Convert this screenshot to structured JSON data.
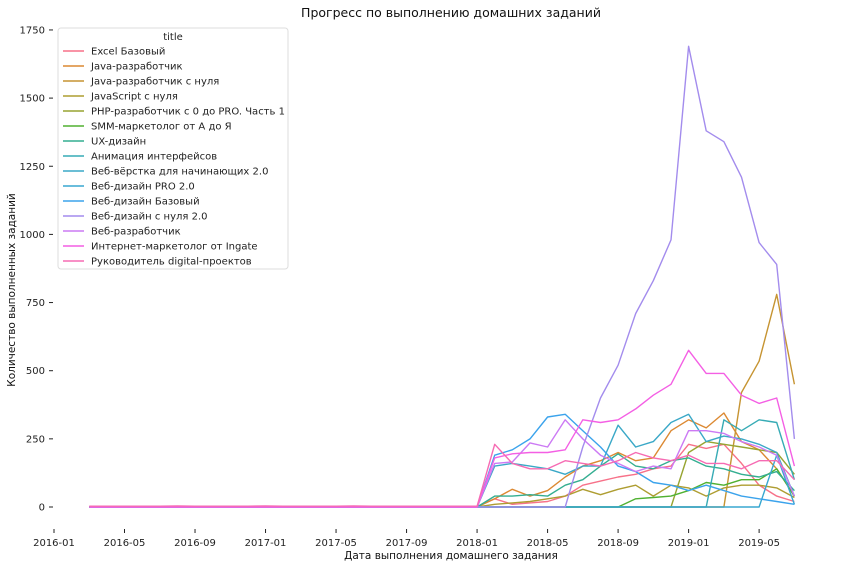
{
  "chart_data": {
    "type": "line",
    "title": "Прогресс по выполнению домашних заданий",
    "xlabel": "Дата выполнения домашнего задания",
    "ylabel": "Количество выполненных заданий",
    "legend_title": "title",
    "legend_position": "top-left",
    "grid": false,
    "xlim": [
      "2016-01",
      "2019-08"
    ],
    "ylim": [
      -60,
      1750
    ],
    "x_ticks": [
      "2016-01",
      "2016-05",
      "2016-09",
      "2017-01",
      "2017-05",
      "2017-09",
      "2018-01",
      "2018-05",
      "2018-09",
      "2019-01",
      "2019-05"
    ],
    "y_ticks": [
      0,
      250,
      500,
      750,
      1000,
      1250,
      1500,
      1750
    ],
    "x": [
      "2016-03",
      "2016-04",
      "2016-05",
      "2016-06",
      "2016-07",
      "2016-08",
      "2016-09",
      "2016-10",
      "2016-11",
      "2016-12",
      "2017-01",
      "2017-02",
      "2017-03",
      "2017-04",
      "2017-05",
      "2017-06",
      "2017-07",
      "2017-08",
      "2017-09",
      "2017-10",
      "2017-11",
      "2017-12",
      "2018-01",
      "2018-02",
      "2018-03",
      "2018-04",
      "2018-05",
      "2018-06",
      "2018-07",
      "2018-08",
      "2018-09",
      "2018-10",
      "2018-11",
      "2018-12",
      "2019-01",
      "2019-02",
      "2019-03",
      "2019-04",
      "2019-05",
      "2019-06",
      "2019-07"
    ],
    "series": [
      {
        "name": "Excel Базовый",
        "color": "#f77189",
        "values": [
          2,
          2,
          2,
          2,
          2,
          2,
          2,
          2,
          2,
          2,
          2,
          2,
          2,
          2,
          2,
          2,
          2,
          2,
          2,
          2,
          2,
          2,
          2,
          30,
          10,
          15,
          20,
          40,
          80,
          95,
          110,
          120,
          140,
          150,
          230,
          215,
          230,
          160,
          80,
          40,
          20
        ]
      },
      {
        "name": "Java-разработчик",
        "color": "#dc8932",
        "values": [
          0,
          0,
          0,
          0,
          0,
          0,
          0,
          0,
          0,
          0,
          0,
          0,
          0,
          0,
          0,
          0,
          0,
          0,
          0,
          0,
          0,
          0,
          0,
          30,
          65,
          40,
          60,
          110,
          150,
          170,
          200,
          170,
          180,
          280,
          320,
          290,
          345,
          240,
          210,
          140,
          40
        ]
      },
      {
        "name": "Java-разработчик с нуля",
        "color": "#c69432",
        "values": [
          0,
          0,
          0,
          0,
          0,
          0,
          0,
          0,
          0,
          0,
          0,
          0,
          0,
          0,
          0,
          0,
          0,
          0,
          0,
          0,
          0,
          0,
          0,
          0,
          0,
          0,
          0,
          0,
          0,
          0,
          0,
          0,
          0,
          0,
          0,
          0,
          0,
          420,
          535,
          780,
          450
        ]
      },
      {
        "name": "JavaScript с нуля",
        "color": "#ae9d31",
        "values": [
          0,
          0,
          0,
          0,
          0,
          0,
          0,
          0,
          0,
          0,
          0,
          0,
          0,
          0,
          0,
          0,
          0,
          0,
          0,
          0,
          0,
          0,
          0,
          10,
          15,
          20,
          30,
          40,
          65,
          45,
          65,
          80,
          40,
          80,
          70,
          40,
          70,
          80,
          80,
          70,
          35
        ]
      },
      {
        "name": "PHP-разработчик с 0 до PRO. Часть 1",
        "color": "#97a431",
        "values": [
          0,
          0,
          0,
          0,
          0,
          0,
          0,
          0,
          0,
          0,
          0,
          0,
          0,
          0,
          0,
          0,
          0,
          0,
          0,
          0,
          0,
          0,
          0,
          0,
          0,
          0,
          0,
          0,
          0,
          0,
          0,
          0,
          0,
          0,
          200,
          240,
          230,
          220,
          210,
          200,
          120
        ]
      },
      {
        "name": "SMM-маркетолог от А до Я",
        "color": "#50b131",
        "values": [
          0,
          0,
          0,
          0,
          0,
          0,
          0,
          0,
          0,
          0,
          0,
          0,
          0,
          0,
          0,
          0,
          0,
          0,
          0,
          0,
          0,
          0,
          0,
          0,
          0,
          0,
          0,
          0,
          0,
          0,
          0,
          30,
          35,
          40,
          60,
          90,
          80,
          100,
          100,
          140,
          40
        ]
      },
      {
        "name": "UX-дизайн",
        "color": "#34ae91",
        "values": [
          0,
          0,
          0,
          0,
          0,
          0,
          0,
          0,
          0,
          0,
          0,
          0,
          0,
          0,
          0,
          0,
          0,
          0,
          0,
          0,
          0,
          0,
          0,
          40,
          40,
          45,
          40,
          80,
          100,
          150,
          195,
          150,
          140,
          170,
          180,
          150,
          140,
          120,
          110,
          130,
          60
        ]
      },
      {
        "name": "Анимация интерфейсов",
        "color": "#37abb5",
        "values": [
          0,
          0,
          0,
          0,
          0,
          0,
          0,
          0,
          0,
          0,
          0,
          0,
          0,
          0,
          0,
          0,
          0,
          0,
          0,
          0,
          0,
          0,
          0,
          0,
          0,
          0,
          0,
          0,
          0,
          0,
          0,
          0,
          0,
          0,
          0,
          0,
          320,
          280,
          320,
          310,
          100
        ]
      },
      {
        "name": "Веб-вёрстка для начинающих 2.0",
        "color": "#3aa8c7",
        "values": [
          0,
          0,
          0,
          0,
          0,
          0,
          0,
          0,
          0,
          0,
          0,
          0,
          0,
          0,
          0,
          0,
          0,
          0,
          0,
          0,
          0,
          0,
          0,
          150,
          160,
          150,
          140,
          120,
          150,
          150,
          300,
          220,
          240,
          310,
          340,
          240,
          260,
          250,
          230,
          200,
          40
        ]
      },
      {
        "name": "Веб-дизайн PRO 2.0",
        "color": "#38a7d0",
        "values": [
          0,
          0,
          0,
          0,
          0,
          0,
          0,
          0,
          0,
          0,
          0,
          0,
          0,
          0,
          0,
          0,
          0,
          0,
          0,
          0,
          0,
          0,
          0,
          0,
          0,
          0,
          0,
          0,
          0,
          0,
          0,
          0,
          0,
          0,
          0,
          0,
          0,
          0,
          0,
          190,
          10
        ]
      },
      {
        "name": "Веб-дизайн Базовый",
        "color": "#3ba3ec",
        "values": [
          0,
          0,
          0,
          0,
          0,
          0,
          0,
          0,
          0,
          0,
          0,
          0,
          0,
          0,
          0,
          0,
          0,
          0,
          0,
          0,
          0,
          0,
          0,
          190,
          210,
          250,
          330,
          340,
          280,
          220,
          150,
          130,
          90,
          80,
          60,
          80,
          60,
          40,
          30,
          20,
          10
        ]
      },
      {
        "name": "Веб-дизайн с нуля 2.0",
        "color": "#a38ced",
        "values": [
          0,
          0,
          0,
          0,
          0,
          0,
          0,
          0,
          0,
          0,
          0,
          0,
          0,
          0,
          0,
          0,
          0,
          0,
          0,
          0,
          0,
          0,
          0,
          0,
          0,
          0,
          0,
          0,
          220,
          400,
          520,
          710,
          830,
          980,
          1690,
          1380,
          1340,
          1210,
          970,
          890,
          250
        ]
      },
      {
        "name": "Веб-разработчик",
        "color": "#cc7af4",
        "values": [
          0,
          0,
          0,
          0,
          0,
          0,
          0,
          0,
          0,
          0,
          0,
          0,
          0,
          0,
          0,
          0,
          0,
          0,
          0,
          0,
          0,
          0,
          0,
          160,
          165,
          235,
          220,
          320,
          250,
          190,
          160,
          130,
          150,
          140,
          280,
          280,
          270,
          240,
          220,
          190,
          40
        ]
      },
      {
        "name": "Интернет-маркетолог от Ingate",
        "color": "#f45fe4",
        "values": [
          0,
          0,
          0,
          0,
          0,
          0,
          0,
          0,
          0,
          0,
          0,
          0,
          0,
          0,
          0,
          0,
          0,
          0,
          0,
          0,
          0,
          0,
          0,
          180,
          195,
          200,
          200,
          210,
          320,
          310,
          320,
          360,
          410,
          450,
          575,
          490,
          490,
          410,
          380,
          400,
          150
        ]
      },
      {
        "name": "Руководитель digital-проектов",
        "color": "#f66bb3",
        "values": [
          3,
          3,
          3,
          3,
          3,
          4,
          3,
          3,
          3,
          3,
          4,
          3,
          3,
          3,
          3,
          4,
          3,
          3,
          3,
          3,
          3,
          3,
          3,
          230,
          160,
          140,
          140,
          170,
          160,
          150,
          170,
          200,
          180,
          170,
          190,
          160,
          160,
          140,
          170,
          170,
          100
        ]
      }
    ]
  }
}
